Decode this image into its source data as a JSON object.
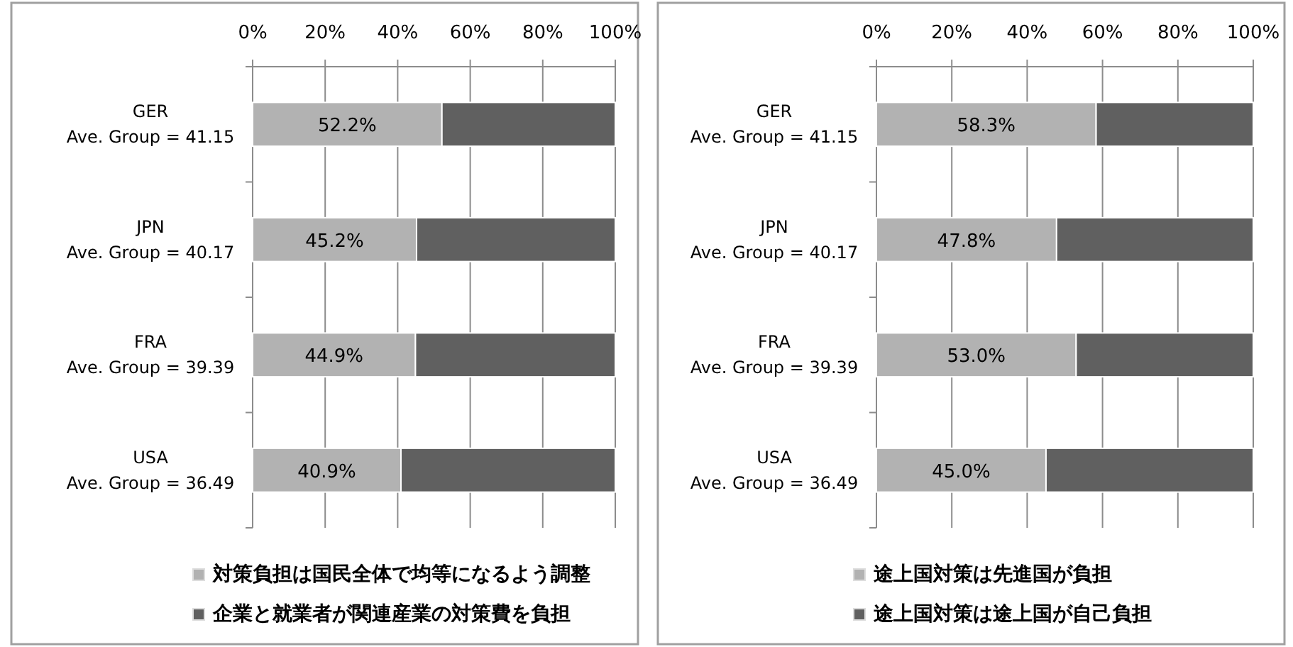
{
  "chart_data": [
    {
      "type": "bar",
      "orientation": "horizontal",
      "stacked": true,
      "categories": [
        "GER\nAve. Group = 41.15",
        "JPN\nAve. Group = 40.17",
        "FRA\nAve. Group = 39.39",
        "USA\nAve. Group = 36.49"
      ],
      "series": [
        {
          "name": "対策負担は国民全体で均等になるよう調整",
          "color": "#b2b2b2",
          "values": [
            52.2,
            45.2,
            44.9,
            40.9
          ],
          "value_labels": [
            "52.2%",
            "45.2%",
            "44.9%",
            "40.9%"
          ]
        },
        {
          "name": "企業と就業者が関連産業の対策費を負担",
          "color": "#606060",
          "values": [
            47.8,
            54.8,
            55.1,
            59.1
          ]
        }
      ],
      "xlim": [
        0,
        100
      ],
      "xticks": [
        {
          "value": 0,
          "label": "0%"
        },
        {
          "value": 20,
          "label": "20%"
        },
        {
          "value": 40,
          "label": "40%"
        },
        {
          "value": 60,
          "label": "60%"
        },
        {
          "value": 80,
          "label": "80%"
        },
        {
          "value": 100,
          "label": "100%"
        }
      ],
      "grid": "x",
      "legend": "bottom"
    },
    {
      "type": "bar",
      "orientation": "horizontal",
      "stacked": true,
      "categories": [
        "GER\nAve. Group = 41.15",
        "JPN\nAve. Group = 40.17",
        "FRA\nAve. Group = 39.39",
        "USA\nAve. Group = 36.49"
      ],
      "series": [
        {
          "name": "途上国対策は先進国が負担",
          "color": "#b2b2b2",
          "values": [
            58.3,
            47.8,
            53.0,
            45.0
          ],
          "value_labels": [
            "58.3%",
            "47.8%",
            "53.0%",
            "45.0%"
          ]
        },
        {
          "name": "途上国対策は途上国が自己負担",
          "color": "#606060",
          "values": [
            41.7,
            52.2,
            47.0,
            55.0
          ]
        }
      ],
      "xlim": [
        0,
        100
      ],
      "xticks": [
        {
          "value": 0,
          "label": "0%"
        },
        {
          "value": 20,
          "label": "20%"
        },
        {
          "value": 40,
          "label": "40%"
        },
        {
          "value": 60,
          "label": "60%"
        },
        {
          "value": 80,
          "label": "80%"
        },
        {
          "value": 100,
          "label": "100%"
        }
      ],
      "grid": "x",
      "legend": "bottom"
    }
  ]
}
